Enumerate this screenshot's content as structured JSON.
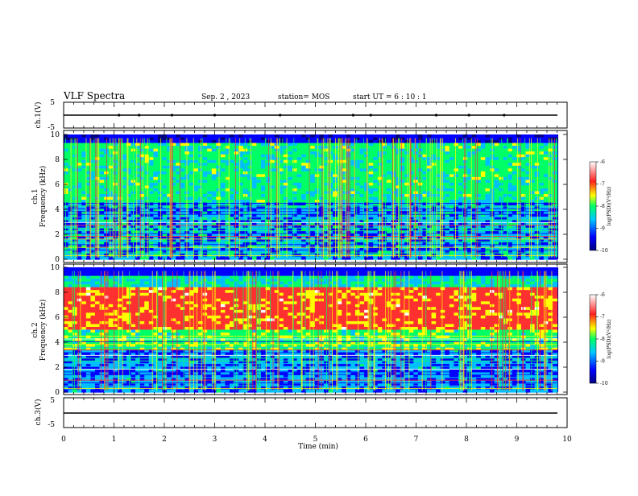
{
  "header": {
    "title": "VLF Spectra",
    "date": "Sep. 2 , 2023",
    "station": "station= MOS",
    "start": "start UT = 6 : 10 : 1"
  },
  "chart_data": [
    {
      "type": "line",
      "name": "ch1-voltage",
      "ylabel": "ch.1(V)",
      "ytick_labels": [
        "5",
        "-5"
      ],
      "ylim": [
        -5,
        5
      ],
      "series": [
        {
          "values_constant": 0
        }
      ],
      "markers_x_min": [
        1.1,
        1.5,
        2.15,
        3.0,
        4.3,
        5.75,
        6.1,
        7.4,
        8.05,
        8.75
      ]
    },
    {
      "type": "heatmap",
      "name": "ch1-spectrogram",
      "ylabel": "ch.1\nFrequency (kHz)",
      "ylim": [
        0,
        10
      ],
      "yticks": [
        0,
        2,
        4,
        6,
        8,
        10
      ],
      "colorbar": {
        "label": "log(PSD)(V²/Hz)",
        "ticks": [
          "-6",
          "-7",
          "-8",
          "-9",
          "-10"
        ],
        "range": [
          -10,
          -6
        ]
      },
      "description_bands_khz": {
        "broadband_high": [
          4.5,
          10
        ],
        "harmonic_lines_low": [
          0.2,
          4.5
        ]
      }
    },
    {
      "type": "heatmap",
      "name": "ch2-spectrogram",
      "ylabel": "ch.2\nFrequency (kHz)",
      "ylim": [
        0,
        10
      ],
      "yticks": [
        0,
        2,
        4,
        6,
        8,
        10
      ],
      "colorbar": {
        "label": "log(PSD)(V²/Hz)",
        "ticks": [
          "-6",
          "-7",
          "-8",
          "-9",
          "-10"
        ],
        "range": [
          -10,
          -6
        ]
      },
      "intense_band_khz": [
        5,
        8
      ]
    },
    {
      "type": "line",
      "name": "ch3-voltage",
      "ylabel": "ch.3(V)",
      "ytick_labels": [
        "5",
        "-5"
      ],
      "ylim": [
        -5,
        5
      ],
      "series": [
        {
          "values_constant": -1
        }
      ]
    }
  ],
  "xaxis": {
    "label": "Time (min)",
    "ticks": [
      "0",
      "1",
      "2",
      "3",
      "4",
      "5",
      "6",
      "7",
      "8",
      "9",
      "10"
    ],
    "xlim": [
      0,
      10
    ],
    "data_extent": 9.8
  },
  "colormap": [
    "#000080",
    "#0000ff",
    "#00bfff",
    "#00ff66",
    "#ffff00",
    "#ff3030",
    "#ffffff"
  ]
}
